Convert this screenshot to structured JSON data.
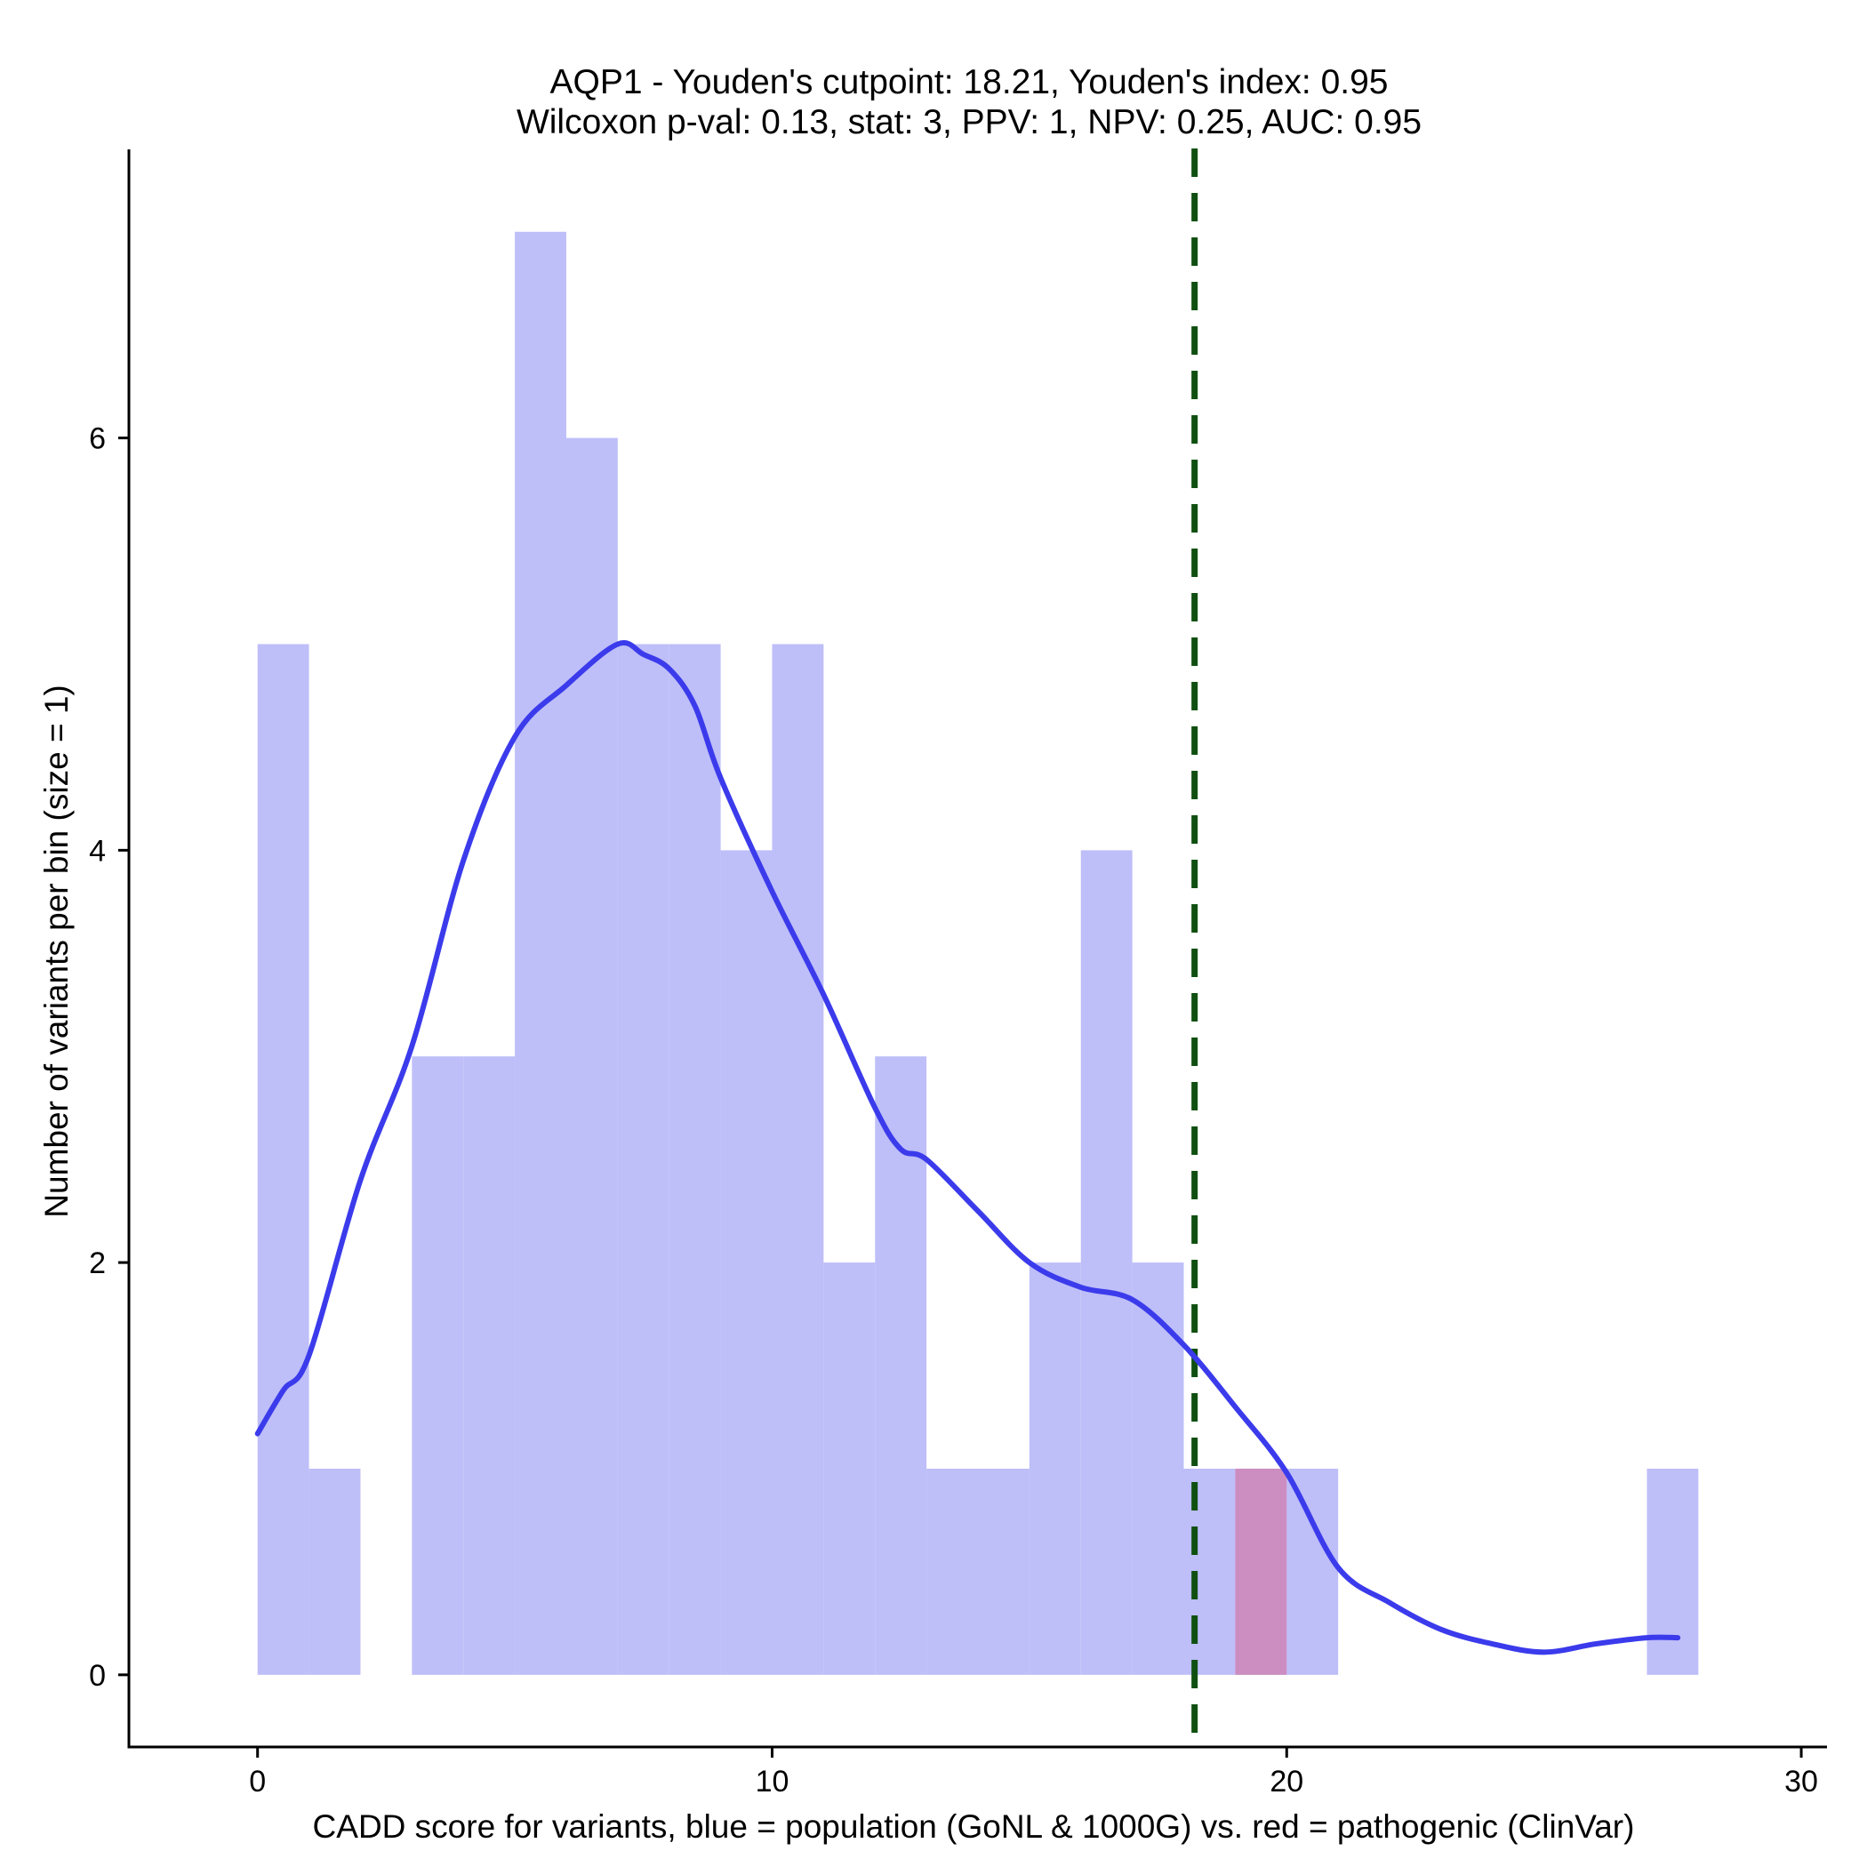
{
  "chart_data": {
    "type": "bar",
    "title_lines": [
      "AQP1 - Youden's cutpoint: 18.21, Youden's index: 0.95",
      "Wilcoxon p-val: 0.13, stat: 3, PPV: 1, NPV: 0.25, AUC: 0.95"
    ],
    "xlabel": "CADD score for variants, blue = population (GoNL & 1000G) vs. red = pathogenic (ClinVar)",
    "ylabel": "Number of variants per bin (size = 1)",
    "xlim": [
      -2.5,
      30.5
    ],
    "ylim": [
      -0.35,
      7.4
    ],
    "x_ticks": [
      0,
      10,
      20,
      30
    ],
    "y_ticks": [
      0,
      2,
      4,
      6
    ],
    "bin_width": 1,
    "series": [
      {
        "kind": "histogram",
        "color": "#bebef9",
        "bins": [
          {
            "start": 0,
            "count": 5
          },
          {
            "start": 1,
            "count": 1
          },
          {
            "start": 2,
            "count": 0
          },
          {
            "start": 3,
            "count": 3
          },
          {
            "start": 4,
            "count": 3
          },
          {
            "start": 5,
            "count": 7
          },
          {
            "start": 6,
            "count": 6
          },
          {
            "start": 7,
            "count": 5
          },
          {
            "start": 8,
            "count": 5
          },
          {
            "start": 9,
            "count": 4
          },
          {
            "start": 10,
            "count": 5
          },
          {
            "start": 11,
            "count": 2
          },
          {
            "start": 12,
            "count": 3
          },
          {
            "start": 13,
            "count": 1
          },
          {
            "start": 14,
            "count": 1
          },
          {
            "start": 15,
            "count": 2
          },
          {
            "start": 16,
            "count": 4
          },
          {
            "start": 17,
            "count": 2
          },
          {
            "start": 18,
            "count": 1
          },
          {
            "start": 19,
            "count": 1
          },
          {
            "start": 20,
            "count": 1
          },
          {
            "start": 27,
            "count": 1
          }
        ]
      },
      {
        "kind": "histogram",
        "color": "#cc8dc1",
        "bins": [
          {
            "start": 19,
            "count": 1
          }
        ]
      },
      {
        "kind": "line",
        "color": "#3b3bec",
        "points": [
          [
            0,
            1.17
          ],
          [
            0.5,
            1.38
          ],
          [
            1,
            1.55
          ],
          [
            2,
            2.4
          ],
          [
            3,
            3.05
          ],
          [
            4,
            3.95
          ],
          [
            5,
            4.55
          ],
          [
            6,
            4.8
          ],
          [
            7,
            5.0
          ],
          [
            7.5,
            4.95
          ],
          [
            8,
            4.88
          ],
          [
            8.5,
            4.7
          ],
          [
            9,
            4.35
          ],
          [
            10,
            3.8
          ],
          [
            11,
            3.3
          ],
          [
            12,
            2.75
          ],
          [
            12.5,
            2.55
          ],
          [
            13,
            2.5
          ],
          [
            14,
            2.25
          ],
          [
            15,
            2.0
          ],
          [
            16,
            1.88
          ],
          [
            17,
            1.82
          ],
          [
            18,
            1.6
          ],
          [
            19,
            1.3
          ],
          [
            20,
            0.98
          ],
          [
            21,
            0.52
          ],
          [
            22,
            0.35
          ],
          [
            23,
            0.22
          ],
          [
            24,
            0.15
          ],
          [
            25,
            0.11
          ],
          [
            26,
            0.15
          ],
          [
            27,
            0.18
          ],
          [
            27.6,
            0.18
          ]
        ]
      }
    ],
    "vline": {
      "x": 18.21,
      "color": "#0f5010",
      "style": "dashed"
    }
  }
}
